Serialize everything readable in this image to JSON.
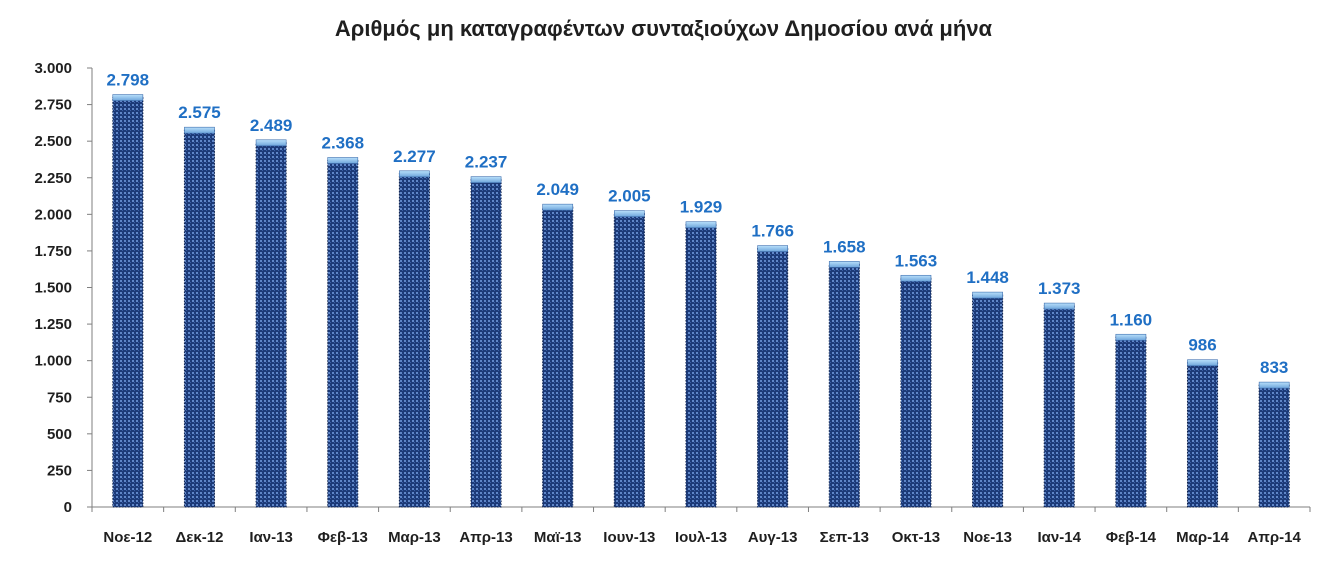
{
  "chart_data": {
    "type": "bar",
    "title": "Αριθμός μη καταγραφέντων  συνταξιούχων Δημοσίου ανά μήνα",
    "xlabel": "",
    "ylabel": "",
    "ylim": [
      0,
      3000
    ],
    "yticks": [
      0,
      250,
      500,
      750,
      1000,
      1250,
      1500,
      1750,
      2000,
      2250,
      2500,
      2750,
      3000
    ],
    "ytick_labels": [
      "0",
      "250",
      "500",
      "750",
      "1.000",
      "1.250",
      "1.500",
      "1.750",
      "2.000",
      "2.250",
      "2.500",
      "2.750",
      "3.000"
    ],
    "categories": [
      "Νοε-12",
      "Δεκ-12",
      "Ιαν-13",
      "Φεβ-13",
      "Μαρ-13",
      "Απρ-13",
      "Μαϊ-13",
      "Ιουν-13",
      "Ιουλ-13",
      "Αυγ-13",
      "Σεπ-13",
      "Οκτ-13",
      "Νοε-13",
      "Ιαν-14",
      "Φεβ-14",
      "Μαρ-14",
      "Απρ-14"
    ],
    "values": [
      2798,
      2575,
      2489,
      2368,
      2277,
      2237,
      2049,
      2005,
      1929,
      1766,
      1658,
      1563,
      1448,
      1373,
      1160,
      986,
      833
    ],
    "value_labels": [
      "2.798",
      "2.575",
      "2.489",
      "2.368",
      "2.277",
      "2.237",
      "2.049",
      "2.005",
      "1.929",
      "1.766",
      "1.658",
      "1.563",
      "1.448",
      "1.373",
      "1.160",
      "986",
      "833"
    ],
    "grid": false,
    "legend": "none",
    "colors": {
      "bar_fill": "#1c3a78",
      "bar_pattern": "#5f86c8",
      "bar_cap": "#8fc4f0",
      "data_label": "#1f6fc4",
      "axis": "#7f7f7f"
    }
  }
}
